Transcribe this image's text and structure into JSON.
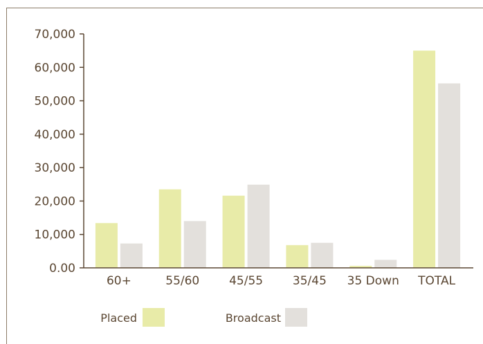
{
  "chart_data": {
    "type": "bar",
    "title": "",
    "xlabel": "",
    "ylabel": "",
    "categories": [
      "60+",
      "55/60",
      "45/55",
      "35/45",
      "35 Down",
      "TOTAL"
    ],
    "series": [
      {
        "name": "Placed",
        "values": [
          13400,
          23500,
          21600,
          6800,
          600,
          65000
        ],
        "color": "#e8eba8"
      },
      {
        "name": "Broadcast",
        "values": [
          7300,
          14000,
          24900,
          7500,
          2400,
          55200
        ],
        "color": "#e3e0dc"
      }
    ],
    "ylim": [
      0,
      70000
    ],
    "yticks": [
      0,
      10000,
      20000,
      30000,
      40000,
      50000,
      60000,
      70000
    ],
    "ytick_labels": [
      "0.00",
      "10,000",
      "20,000",
      "30,000",
      "40,000",
      "50,000",
      "60,000",
      "70,000"
    ],
    "grid": false,
    "legend_position": "bottom-left"
  },
  "colors": {
    "axis": "#5a4632",
    "text": "#5a4632",
    "frame": "#8a7a66"
  }
}
